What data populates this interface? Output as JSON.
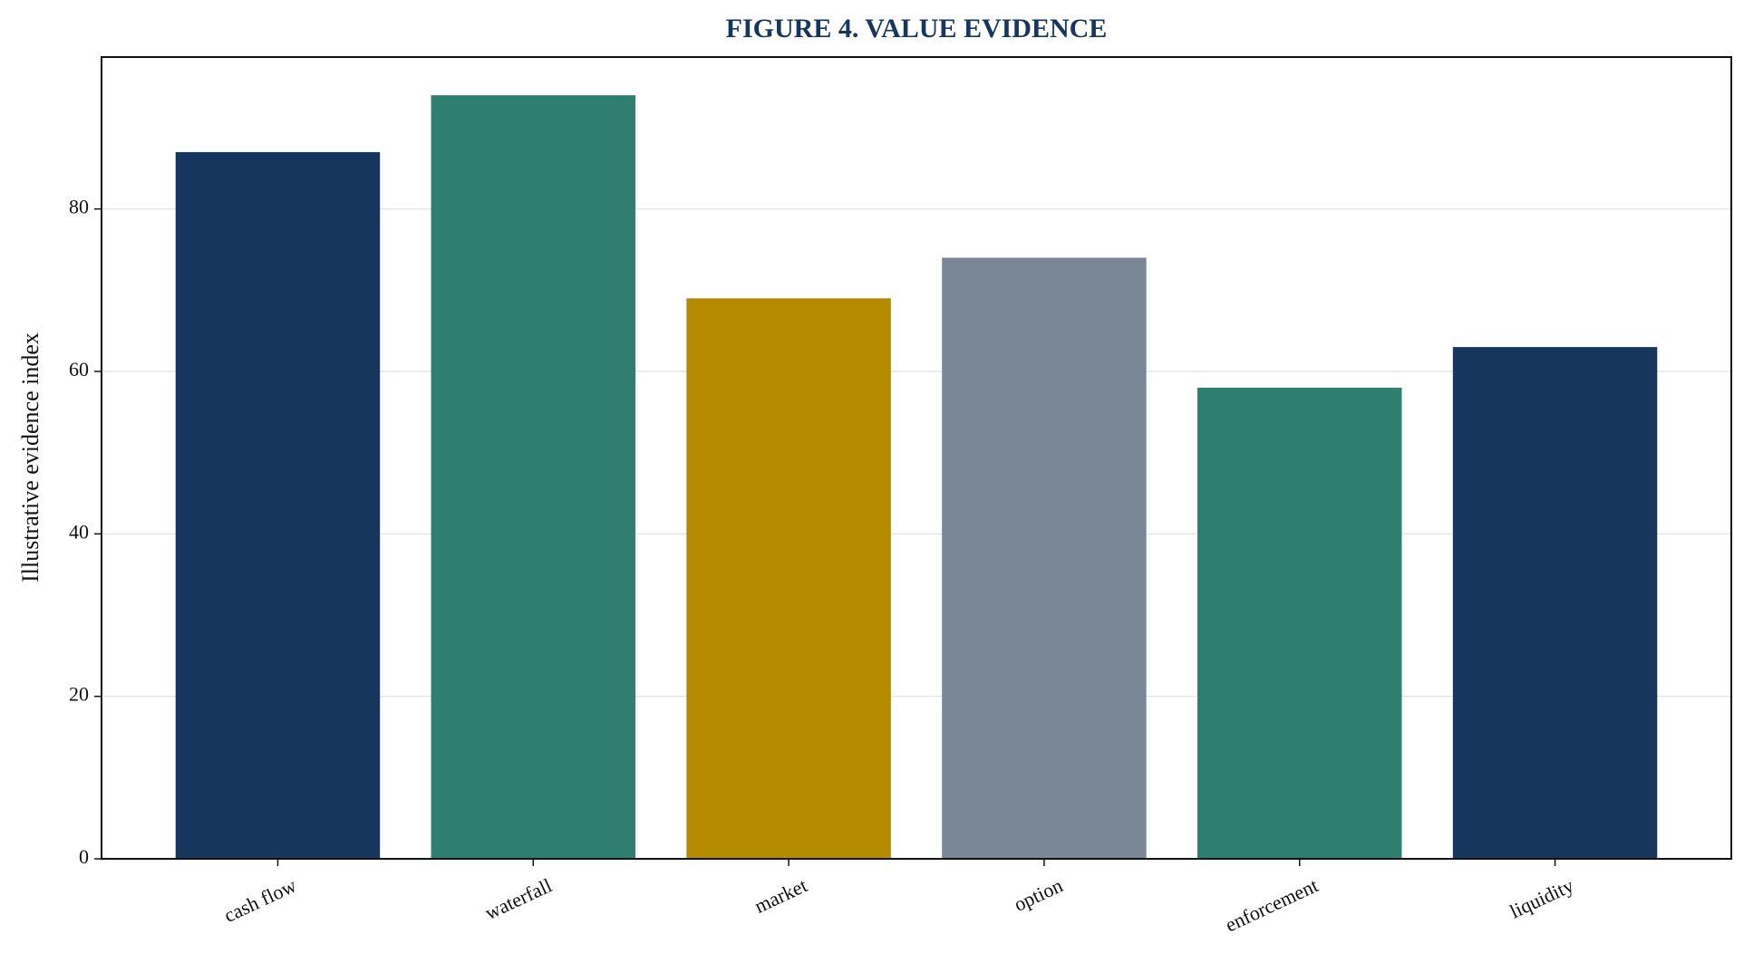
{
  "chart_data": {
    "type": "bar",
    "title": "FIGURE 4. VALUE EVIDENCE",
    "y_label": "Illustrative evidence index",
    "categories": [
      "cash flow",
      "waterfall",
      "market",
      "option",
      "enforcement",
      "liquidity"
    ],
    "values": [
      87,
      94,
      69,
      74,
      58,
      63
    ],
    "colors": [
      "#17365d",
      "#2e7f6f",
      "#b38a00",
      "#7a8795",
      "#2e7f6f",
      "#17365d"
    ],
    "ylim": [
      0,
      98.7
    ],
    "yticks": [
      0,
      20,
      40,
      60,
      80
    ],
    "grid": true
  }
}
